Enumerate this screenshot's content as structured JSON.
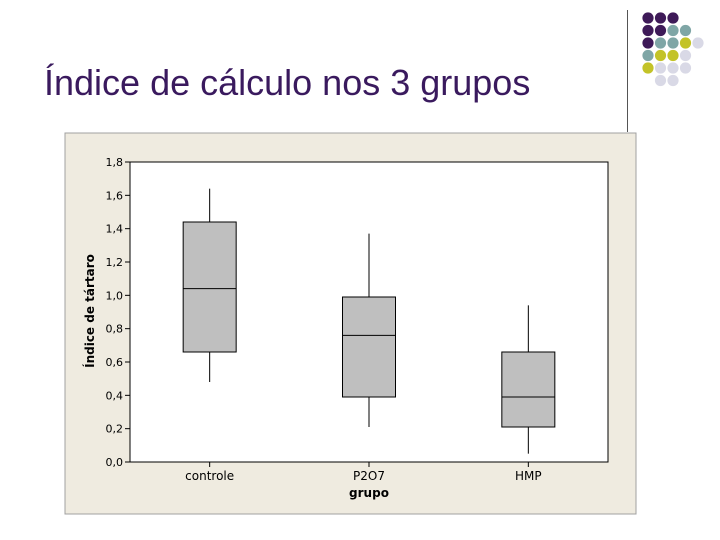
{
  "slide": {
    "title": "Índice de cálculo nos 3 grupos"
  },
  "colors": {
    "title": "#3a1a5e",
    "dot_purple": "#3e1a58",
    "dot_teal": "#7fa6a6",
    "dot_olive": "#c3c328",
    "dot_lavender": "#d9d9e6",
    "frame_bg": "#efebe0",
    "box_fill": "#bfbfbf"
  },
  "decoration": {
    "dot_grid": [
      [
        "dot_purple",
        "dot_purple",
        "dot_purple",
        null,
        null
      ],
      [
        "dot_purple",
        "dot_purple",
        "dot_teal",
        "dot_teal",
        null
      ],
      [
        "dot_purple",
        "dot_teal",
        "dot_teal",
        "dot_olive",
        "dot_lavender"
      ],
      [
        "dot_teal",
        "dot_olive",
        "dot_olive",
        "dot_lavender",
        null
      ],
      [
        "dot_olive",
        "dot_lavender",
        "dot_lavender",
        "dot_lavender",
        null
      ],
      [
        null,
        "dot_lavender",
        "dot_lavender",
        null,
        null
      ]
    ]
  },
  "chart_data": {
    "type": "boxplot",
    "title": "",
    "xlabel": "grupo",
    "ylabel": "Índice de tártaro",
    "ylim": [
      0.0,
      1.8
    ],
    "yticks": [
      0.0,
      0.2,
      0.4,
      0.6,
      0.8,
      1.0,
      1.2,
      1.4,
      1.6,
      1.8
    ],
    "ytick_labels": [
      "0,0",
      "0,2",
      "0,4",
      "0,6",
      "0,8",
      "1,0",
      "1,2",
      "1,4",
      "1,6",
      "1,8"
    ],
    "categories": [
      "controle",
      "P2O7",
      "HMP"
    ],
    "boxes": [
      {
        "min": 0.48,
        "q1": 0.66,
        "median": 1.04,
        "q3": 1.44,
        "max": 1.64
      },
      {
        "min": 0.21,
        "q1": 0.39,
        "median": 0.76,
        "q3": 0.99,
        "max": 1.37
      },
      {
        "min": 0.05,
        "q1": 0.21,
        "median": 0.39,
        "q3": 0.66,
        "max": 0.94
      }
    ],
    "grid": false,
    "legend": "none"
  }
}
